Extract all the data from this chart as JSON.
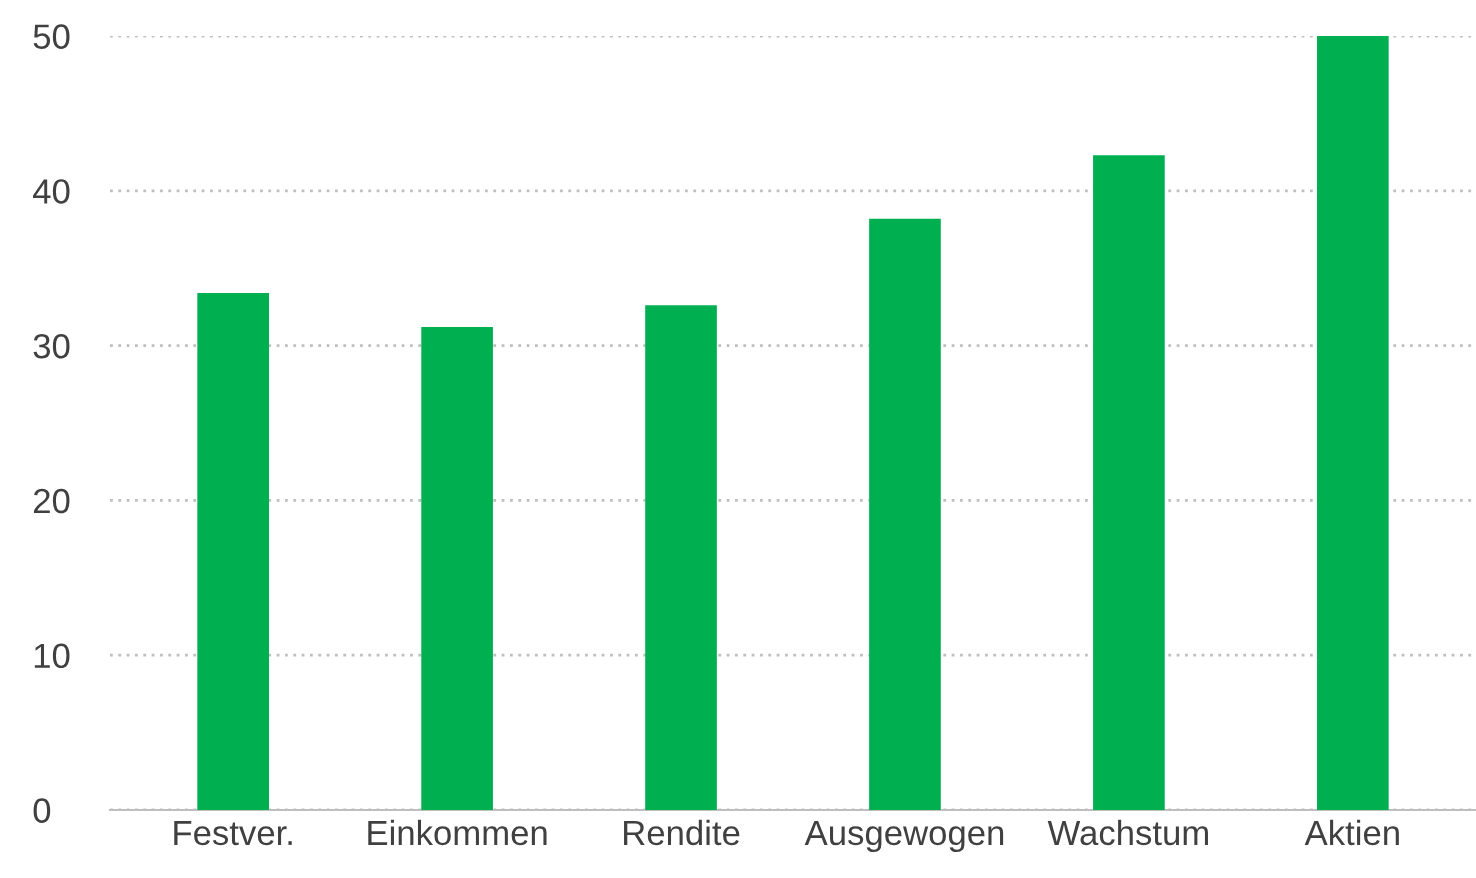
{
  "chart_data": {
    "type": "bar",
    "categories": [
      "Festver.",
      "Einkommen",
      "Rendite",
      "Ausgewogen",
      "Wachstum",
      "Aktien"
    ],
    "values": [
      33.4,
      31.2,
      32.6,
      38.2,
      42.3,
      50.0
    ],
    "color": "#00b050",
    "ylim": [
      0,
      50
    ],
    "yticks": [
      0,
      10,
      20,
      30,
      40,
      50
    ],
    "grid": "y",
    "legend": false
  }
}
